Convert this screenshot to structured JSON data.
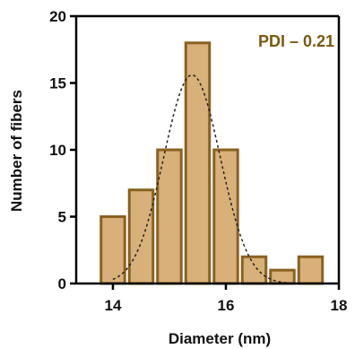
{
  "chart_data": {
    "type": "bar",
    "title": "",
    "xlabel": "Diameter (nm)",
    "ylabel": "Number of fibers",
    "xlim": [
      13.35,
      18
    ],
    "ylim": [
      0,
      20
    ],
    "x_ticks": [
      14,
      16,
      18
    ],
    "x_tick_labels": [
      "14",
      "16",
      "18"
    ],
    "y_ticks": [
      0,
      5,
      10,
      15,
      20
    ],
    "y_tick_labels": [
      "0",
      "5",
      "10",
      "15",
      "20"
    ],
    "bin_width": 0.5,
    "bin_centers": [
      14.0,
      14.5,
      15.0,
      15.5,
      16.0,
      16.5,
      17.0,
      17.5
    ],
    "values": [
      5,
      7,
      10,
      18,
      10,
      2,
      1,
      2
    ],
    "fit_curve": {
      "type": "gaussian",
      "style": "dashed",
      "mean": 15.4,
      "sd": 0.5,
      "peak": 15.6
    },
    "annotation": "PDI – 0.21",
    "grid": false,
    "colors": {
      "bar_fill": "#d8b079",
      "bar_stroke": "#8a6120",
      "annotation": "#7a5a10",
      "curve": "#222222",
      "axis": "#000000"
    }
  }
}
